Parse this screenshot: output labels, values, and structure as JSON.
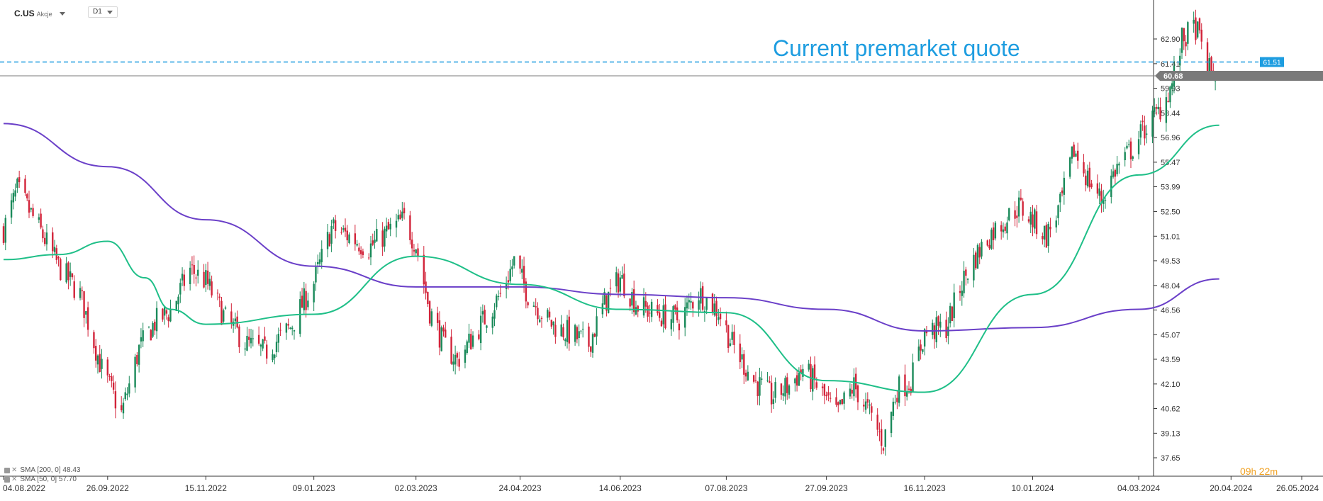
{
  "header": {
    "symbol": "C.US",
    "type": "Akcje",
    "timeframe": "D1"
  },
  "annotation": "Current premarket quote",
  "timer": {
    "hours": "09",
    "h_unit": "h",
    "minutes": "22",
    "m_unit": "m"
  },
  "legend": [
    {
      "label": "SMA [200, 0] 48.43",
      "color": "#6a3fc8"
    },
    {
      "label": "SMA [50, 0] 57.70",
      "color": "#1fbf88"
    }
  ],
  "colors": {
    "up": "#1a8a5a",
    "down": "#d2243a",
    "sma50": "#1fbf88",
    "sma200": "#6a3fc8",
    "premarket": "#1e9de0",
    "last": "#7a7a7a",
    "axis": "#333333"
  },
  "chart_data": {
    "type": "candlestick",
    "title": "",
    "xlabel": "",
    "ylabel": "",
    "x_ticks": [
      "04.08.2022",
      "26.09.2022",
      "15.11.2022",
      "09.01.2023",
      "02.03.2023",
      "24.04.2023",
      "14.06.2023",
      "07.08.2023",
      "27.09.2023",
      "16.11.2023",
      "10.01.2024",
      "04.03.2024",
      "20.04.2024",
      "26.05.2024"
    ],
    "y_ticks": [
      37.65,
      39.13,
      40.62,
      42.1,
      43.59,
      45.07,
      46.56,
      48.04,
      49.53,
      51.01,
      52.5,
      53.99,
      55.47,
      56.96,
      58.44,
      59.93,
      61.41,
      62.9
    ],
    "ylim": [
      37.65,
      63.9
    ],
    "premarket_quote": 61.51,
    "last_price": 60.68,
    "close_path": [
      [
        "04.08.2022",
        51.4
      ],
      [
        "11.08.2022",
        53.8
      ],
      [
        "22.08.2022",
        51.5
      ],
      [
        "01.09.2022",
        49.2
      ],
      [
        "12.09.2022",
        47.5
      ],
      [
        "23.09.2022",
        43.0
      ],
      [
        "03.10.2022",
        40.3
      ],
      [
        "12.10.2022",
        44.2
      ],
      [
        "20.10.2022",
        45.8
      ],
      [
        "28.10.2022",
        46.5
      ],
      [
        "07.11.2022",
        49.0
      ],
      [
        "15.11.2022",
        48.3
      ],
      [
        "25.11.2022",
        46.0
      ],
      [
        "06.12.2022",
        44.5
      ],
      [
        "15.12.2022",
        44.0
      ],
      [
        "28.12.2022",
        45.5
      ],
      [
        "09.01.2023",
        48.2
      ],
      [
        "18.01.2023",
        51.5
      ],
      [
        "27.01.2023",
        51.0
      ],
      [
        "06.02.2023",
        50.3
      ],
      [
        "15.02.2023",
        51.2
      ],
      [
        "24.02.2023",
        52.0
      ],
      [
        "02.03.2023",
        50.5
      ],
      [
        "09.03.2023",
        46.5
      ],
      [
        "16.03.2023",
        44.5
      ],
      [
        "23.03.2023",
        43.5
      ],
      [
        "03.04.2023",
        45.5
      ],
      [
        "14.04.2023",
        47.5
      ],
      [
        "21.04.2023",
        49.5
      ],
      [
        "28.04.2023",
        47.5
      ],
      [
        "09.05.2023",
        45.8
      ],
      [
        "18.05.2023",
        45.2
      ],
      [
        "29.05.2023",
        44.5
      ],
      [
        "06.06.2023",
        47.0
      ],
      [
        "14.06.2023",
        48.5
      ],
      [
        "23.06.2023",
        46.8
      ],
      [
        "05.07.2023",
        46.2
      ],
      [
        "14.07.2023",
        46.0
      ],
      [
        "24.07.2023",
        47.6
      ],
      [
        "03.08.2023",
        46.5
      ],
      [
        "10.08.2023",
        44.5
      ],
      [
        "21.08.2023",
        42.3
      ],
      [
        "30.08.2023",
        41.3
      ],
      [
        "08.09.2023",
        42.0
      ],
      [
        "15.09.2023",
        43.0
      ],
      [
        "22.09.2023",
        42.0
      ],
      [
        "02.10.2023",
        40.2
      ],
      [
        "11.10.2023",
        42.0
      ],
      [
        "18.10.2023",
        40.5
      ],
      [
        "26.10.2023",
        38.6
      ],
      [
        "02.11.2023",
        41.8
      ],
      [
        "09.11.2023",
        42.3
      ],
      [
        "16.11.2023",
        45.2
      ],
      [
        "27.11.2023",
        45.5
      ],
      [
        "05.12.2023",
        48.2
      ],
      [
        "12.12.2023",
        49.8
      ],
      [
        "20.12.2023",
        51.2
      ],
      [
        "03.01.2024",
        52.8
      ],
      [
        "10.01.2024",
        52.0
      ],
      [
        "17.01.2024",
        51.0
      ],
      [
        "24.01.2024",
        52.8
      ],
      [
        "31.01.2024",
        56.2
      ],
      [
        "07.02.2024",
        54.5
      ],
      [
        "14.02.2024",
        53.2
      ],
      [
        "21.02.2024",
        55.0
      ],
      [
        "29.02.2024",
        56.2
      ],
      [
        "07.03.2024",
        57.5
      ],
      [
        "14.03.2024",
        58.5
      ],
      [
        "21.03.2024",
        60.2
      ],
      [
        "26.03.2024",
        62.8
      ],
      [
        "02.04.2024",
        63.6
      ],
      [
        "05.04.2024",
        62.5
      ],
      [
        "09.04.2024",
        61.0
      ],
      [
        "12.04.2024",
        60.68
      ]
    ],
    "series": [
      {
        "name": "SMA [200, 0]",
        "points": [
          [
            "04.08.2022",
            57.8
          ],
          [
            "26.09.2022",
            55.2
          ],
          [
            "15.11.2022",
            52.0
          ],
          [
            "09.01.2023",
            49.2
          ],
          [
            "02.03.2023",
            47.95
          ],
          [
            "24.04.2023",
            47.95
          ],
          [
            "14.06.2023",
            47.5
          ],
          [
            "07.08.2023",
            47.3
          ],
          [
            "27.09.2023",
            46.6
          ],
          [
            "16.11.2023",
            45.3
          ],
          [
            "10.01.2024",
            45.5
          ],
          [
            "04.03.2024",
            46.6
          ],
          [
            "14.04.2024",
            48.43
          ]
        ]
      },
      {
        "name": "SMA [50, 0]",
        "points": [
          [
            "04.08.2022",
            49.6
          ],
          [
            "01.09.2022",
            49.9
          ],
          [
            "26.09.2022",
            50.7
          ],
          [
            "15.10.2022",
            48.5
          ],
          [
            "28.10.2022",
            46.6
          ],
          [
            "15.11.2022",
            45.7
          ],
          [
            "09.01.2023",
            46.3
          ],
          [
            "02.03.2023",
            49.8
          ],
          [
            "24.04.2023",
            48.1
          ],
          [
            "14.06.2023",
            46.6
          ],
          [
            "07.08.2023",
            46.4
          ],
          [
            "27.09.2023",
            42.3
          ],
          [
            "16.11.2023",
            41.6
          ],
          [
            "10.01.2024",
            47.5
          ],
          [
            "04.03.2024",
            54.7
          ],
          [
            "14.04.2024",
            57.7
          ]
        ]
      }
    ]
  }
}
